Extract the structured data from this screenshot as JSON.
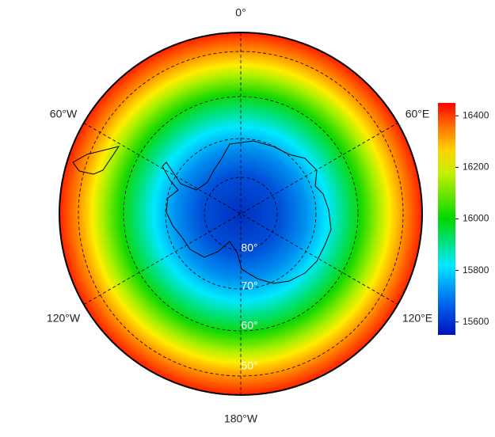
{
  "map": {
    "longitude_labels": [
      "0°",
      "60°E",
      "120°E",
      "180°W",
      "120°W",
      "60°W"
    ],
    "latitude_labels": [
      "80°",
      "70°",
      "60°",
      "50°"
    ]
  },
  "colorbar": {
    "range": [
      15550,
      16450
    ],
    "ticks": [
      15600,
      15800,
      16000,
      16200,
      16400
    ]
  }
}
